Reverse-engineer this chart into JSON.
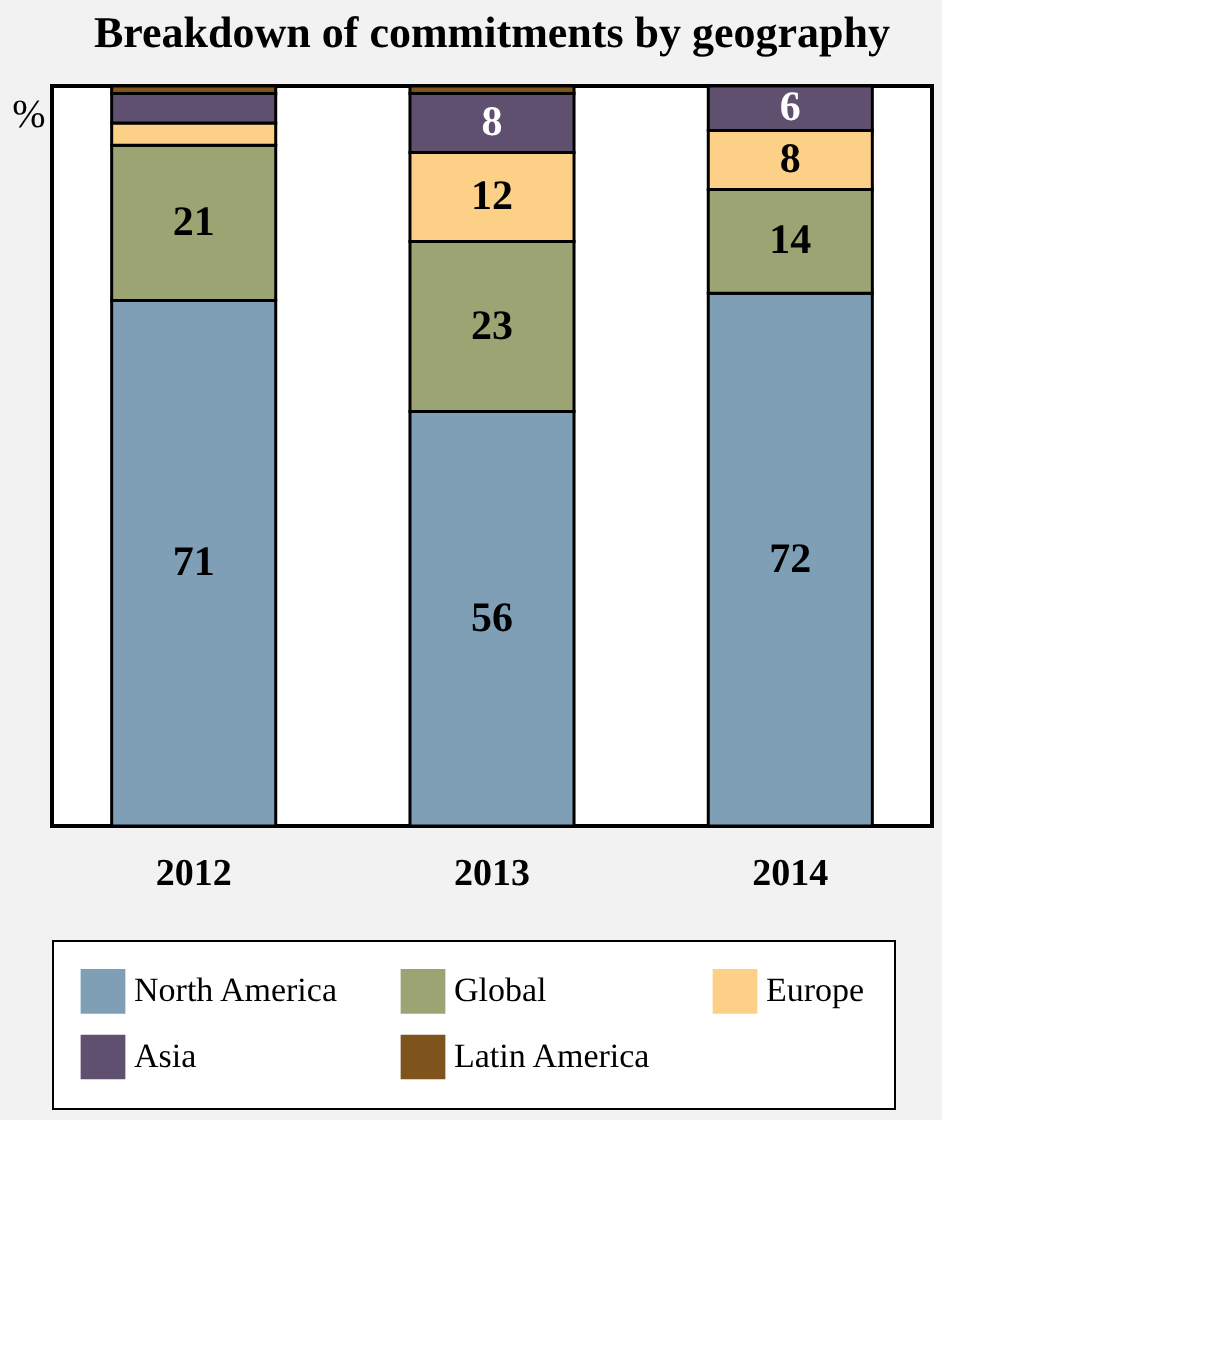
{
  "chart_data": {
    "type": "bar",
    "title": "Breakdown of commitments by geography",
    "ylabel": "%",
    "categories": [
      "2012",
      "2013",
      "2014"
    ],
    "stacked": true,
    "ylim": [
      0,
      100
    ],
    "tick_labels": "x",
    "grid": false,
    "legend": "bottom",
    "series": [
      {
        "name": "North America",
        "color": "#7f9fb6",
        "values": [
          71,
          56,
          72
        ],
        "value_labels": [
          "71",
          "56",
          "72"
        ]
      },
      {
        "name": "Global",
        "color": "#9da474",
        "values": [
          21,
          23,
          14
        ],
        "value_labels": [
          "21",
          "23",
          "14"
        ]
      },
      {
        "name": "Europe",
        "color": "#fdd088",
        "values": [
          3,
          12,
          8
        ],
        "value_labels": [
          null,
          "12",
          "8"
        ]
      },
      {
        "name": "Asia",
        "color": "#605070",
        "values": [
          4,
          8,
          6
        ],
        "value_labels": [
          null,
          "8",
          "6"
        ]
      },
      {
        "name": "Latin America",
        "color": "#7e541c",
        "values": [
          1,
          1,
          0
        ],
        "value_labels": [
          null,
          null,
          null
        ]
      }
    ]
  }
}
